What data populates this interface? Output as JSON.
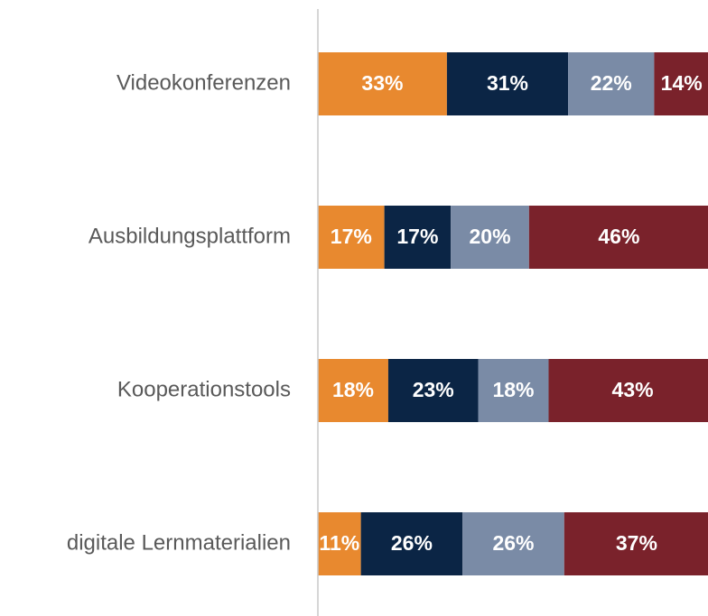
{
  "chart_data": {
    "type": "stacked_barh",
    "categories": [
      "Videokonferenzen",
      "Ausbildungsplattform",
      "Kooperationstools",
      "digitale Lernmaterialien"
    ],
    "series": [
      {
        "color": "#E8892F",
        "values": [
          33,
          17,
          18,
          11
        ],
        "value_labels": [
          "33%",
          "17%",
          "18%",
          "11%"
        ]
      },
      {
        "color": "#0B2545",
        "values": [
          31,
          17,
          23,
          26
        ],
        "value_labels": [
          "31%",
          "17%",
          "23%",
          "26%"
        ]
      },
      {
        "color": "#7A8BA6",
        "values": [
          22,
          20,
          18,
          26
        ],
        "value_labels": [
          "22%",
          "20%",
          "18%",
          "26%"
        ]
      },
      {
        "color": "#7A222B",
        "values": [
          14,
          46,
          43,
          37
        ],
        "value_labels": [
          "14%",
          "46%",
          "43%",
          "37%"
        ]
      }
    ],
    "xlim": [
      0,
      100
    ]
  }
}
